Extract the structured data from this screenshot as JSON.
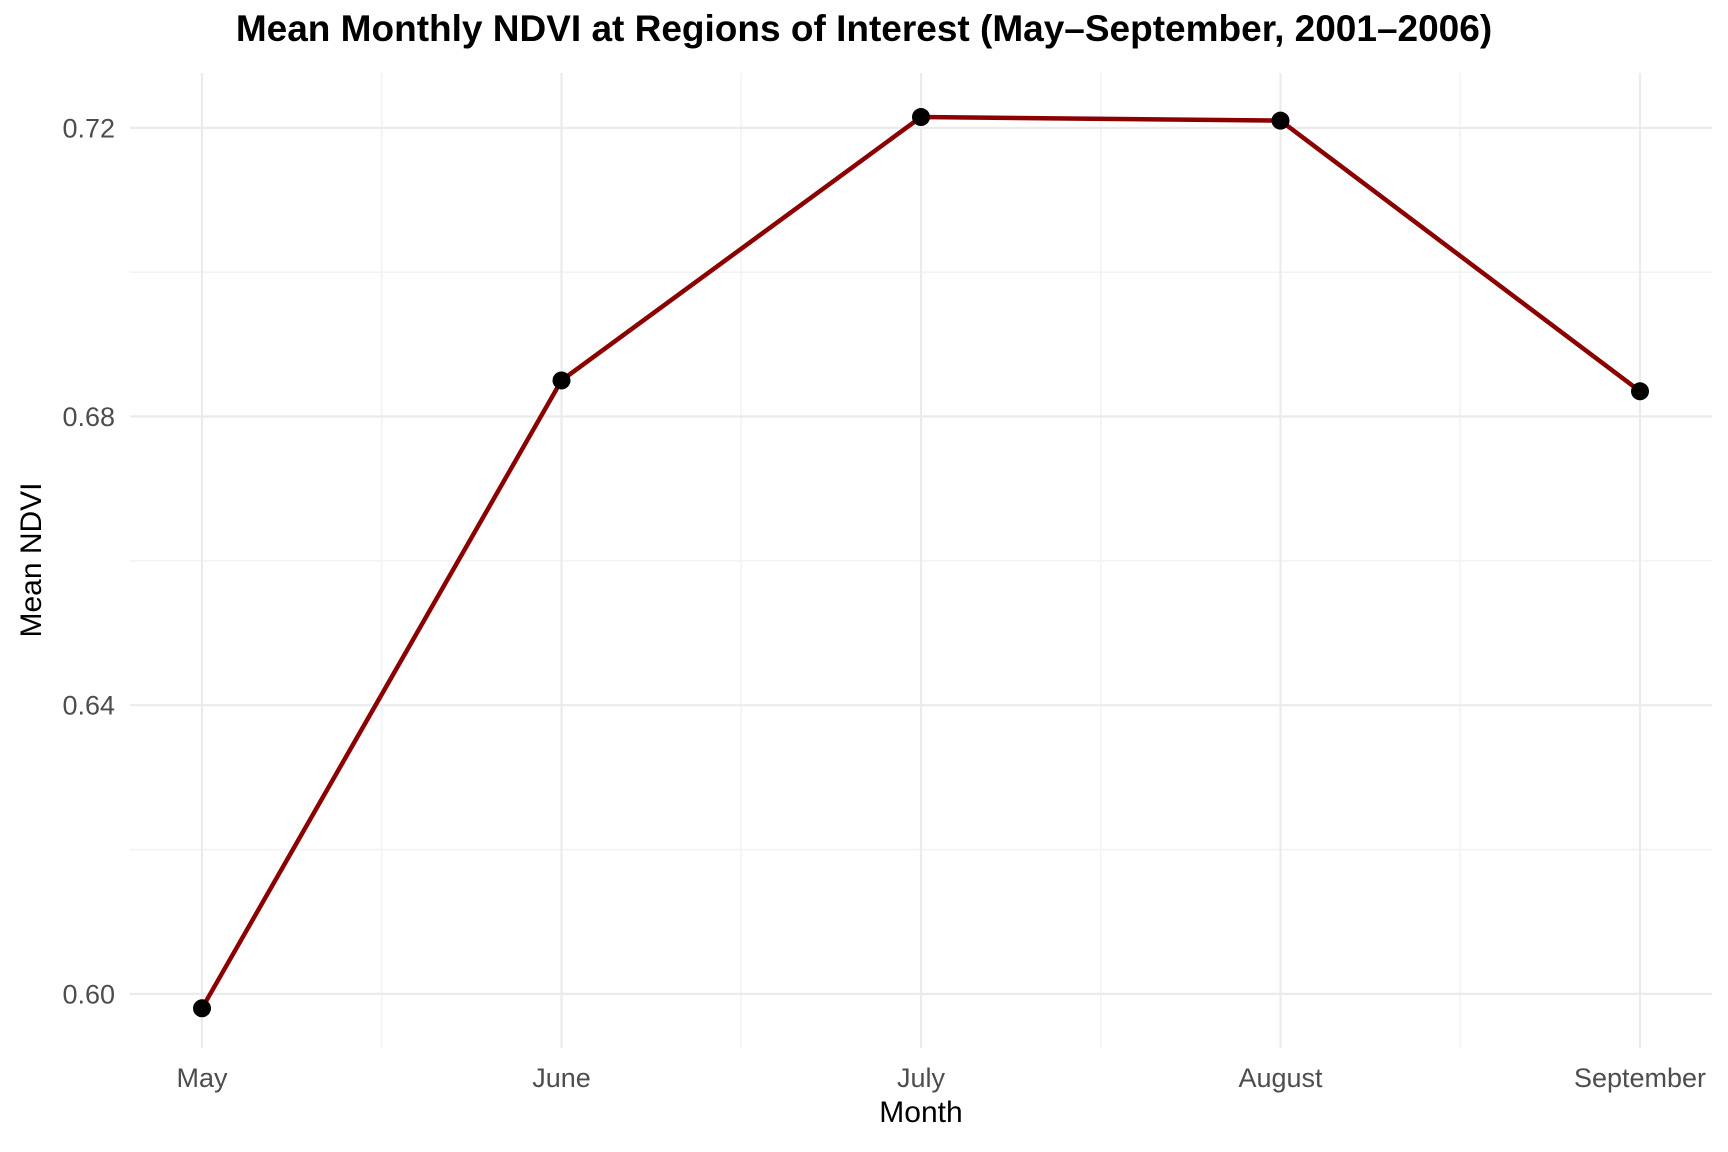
{
  "figure": {
    "title": "Mean Monthly NDVI at Regions of Interest (May–September, 2001–2006)",
    "x_axis_title": "Month",
    "y_axis_title": "Mean NDVI"
  },
  "chart_data": {
    "type": "line",
    "title": "Mean Monthly NDVI at Regions of Interest (May–September, 2001–2006)",
    "xlabel": "Month",
    "ylabel": "Mean NDVI",
    "categories": [
      "May",
      "June",
      "July",
      "August",
      "September"
    ],
    "series": [
      {
        "name": "Mean NDVI",
        "values": [
          0.598,
          0.685,
          0.7215,
          0.721,
          0.6835
        ]
      }
    ],
    "ylim": [
      0.5925,
      0.7276
    ],
    "y_ticks": [
      0.6,
      0.64,
      0.68,
      0.72
    ],
    "y_tick_labels": [
      "0.60",
      "0.64",
      "0.68",
      "0.72"
    ],
    "y_minor_ticks": [
      0.62,
      0.66,
      0.7
    ],
    "grid": true,
    "legend": "none",
    "colors": {
      "line": "#8B0000",
      "point": "#000000",
      "grid_major": "#EBEBEB",
      "grid_minor": "#F3F3F3",
      "tick_label": "#4D4D4D",
      "text": "#000000",
      "background": "#FFFFFF"
    }
  }
}
